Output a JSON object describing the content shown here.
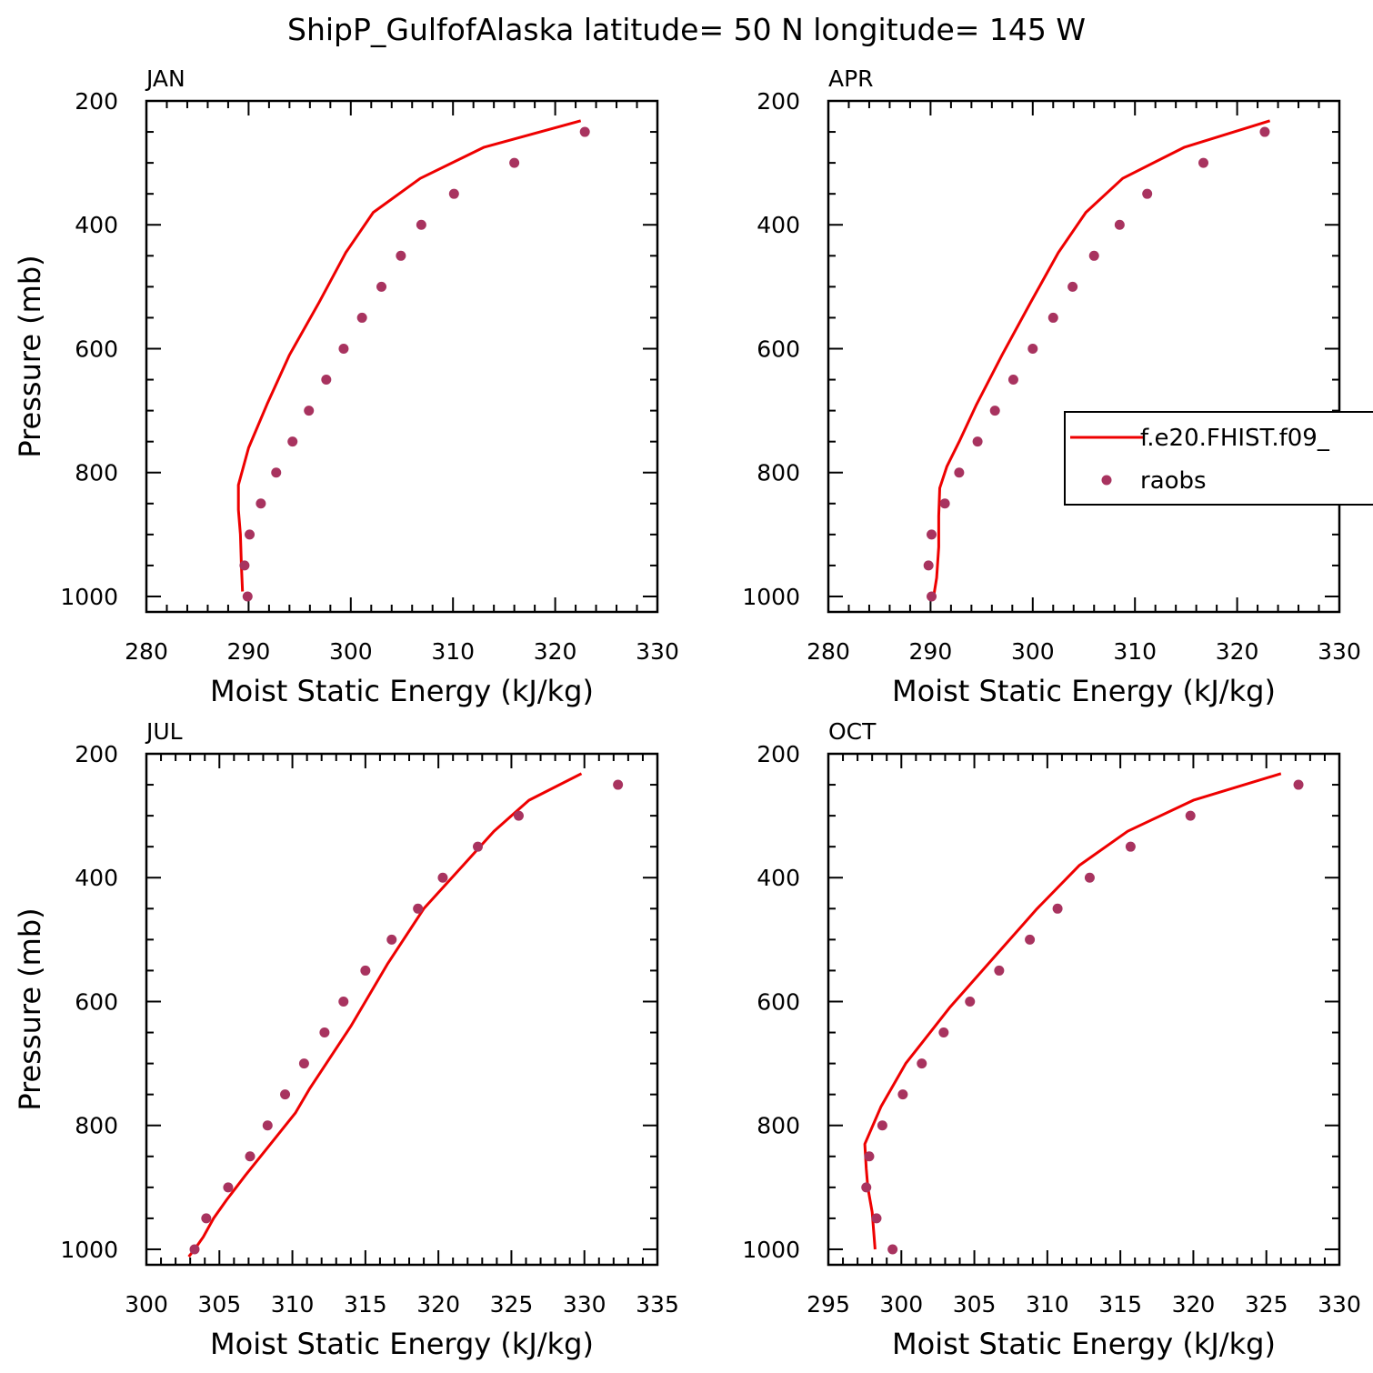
{
  "title": "ShipP_GulfofAlaska  latitude= 50 N longitude= 145 W",
  "colors": {
    "model": "#ee0000",
    "obs": "#a8335f",
    "axis": "#000000"
  },
  "legend": {
    "model_label": "f.e20.FHIST.f09_",
    "obs_label": "raobs",
    "panel": 1
  },
  "chart_data": [
    {
      "type": "line",
      "title": "JAN",
      "xlabel": "Moist Static Energy (kJ/kg)",
      "ylabel": "Pressure (mb)",
      "xlim": [
        280,
        330
      ],
      "ylim": [
        1025,
        200
      ],
      "xticks": [
        280,
        290,
        300,
        310,
        320,
        330
      ],
      "yticks": [
        200,
        400,
        600,
        800,
        1000
      ],
      "series": [
        {
          "name": "f.e20.FHIST.f09_",
          "style": "line",
          "x": [
            322.5,
            313.0,
            306.8,
            302.2,
            299.5,
            296.9,
            294.0,
            291.8,
            290.0,
            289.0,
            289.0,
            289.2,
            289.3,
            289.4
          ],
          "y": [
            232,
            275,
            325,
            380,
            445,
            525,
            610,
            690,
            760,
            820,
            860,
            900,
            950,
            992
          ]
        },
        {
          "name": "raobs",
          "style": "markers",
          "x": [
            322.9,
            316.0,
            310.1,
            306.9,
            304.9,
            303.0,
            301.1,
            299.3,
            297.6,
            295.9,
            294.3,
            292.7,
            291.2,
            290.1,
            289.6,
            289.9
          ],
          "y": [
            250,
            300,
            350,
            400,
            450,
            500,
            550,
            600,
            650,
            700,
            750,
            800,
            850,
            900,
            950,
            1000
          ]
        }
      ]
    },
    {
      "type": "line",
      "title": "APR",
      "xlabel": "Moist Static Energy (kJ/kg)",
      "ylabel": "",
      "xlim": [
        280,
        330
      ],
      "ylim": [
        1025,
        200
      ],
      "xticks": [
        280,
        290,
        300,
        310,
        320,
        330
      ],
      "yticks": [
        200,
        400,
        600,
        800,
        1000
      ],
      "series": [
        {
          "name": "f.e20.FHIST.f09_",
          "style": "line",
          "x": [
            323.2,
            314.8,
            308.8,
            305.2,
            302.5,
            299.8,
            297.0,
            294.5,
            292.8,
            291.6,
            290.9,
            290.8,
            290.8,
            290.6,
            290.3
          ],
          "y": [
            232,
            275,
            325,
            380,
            445,
            525,
            610,
            690,
            750,
            790,
            825,
            870,
            920,
            970,
            1000
          ]
        },
        {
          "name": "raobs",
          "style": "markers",
          "x": [
            322.7,
            316.7,
            311.2,
            308.5,
            306.0,
            303.9,
            302.0,
            300.0,
            298.1,
            296.3,
            294.6,
            292.8,
            291.4,
            290.1,
            289.8,
            290.1
          ],
          "y": [
            250,
            300,
            350,
            400,
            450,
            500,
            550,
            600,
            650,
            700,
            750,
            800,
            850,
            900,
            950,
            1000
          ]
        }
      ]
    },
    {
      "type": "line",
      "title": "JUL",
      "xlabel": "Moist Static Energy (kJ/kg)",
      "ylabel": "Pressure (mb)",
      "xlim": [
        300,
        335
      ],
      "ylim": [
        1025,
        200
      ],
      "xticks": [
        300,
        305,
        310,
        315,
        320,
        325,
        330,
        335
      ],
      "yticks": [
        200,
        400,
        600,
        800,
        1000
      ],
      "series": [
        {
          "name": "f.e20.FHIST.f09_",
          "style": "line",
          "x": [
            329.8,
            326.2,
            323.8,
            321.7,
            319.0,
            316.5,
            314.0,
            311.2,
            310.2,
            308.5,
            306.8,
            305.5,
            304.6,
            303.9,
            303.3,
            302.9
          ],
          "y": [
            232,
            275,
            325,
            380,
            450,
            540,
            640,
            740,
            780,
            830,
            880,
            920,
            950,
            980,
            1000,
            1012
          ]
        },
        {
          "name": "raobs",
          "style": "markers",
          "x": [
            332.3,
            325.5,
            322.7,
            320.3,
            318.6,
            316.8,
            315.0,
            313.5,
            312.2,
            310.8,
            309.5,
            308.3,
            307.1,
            305.6,
            304.1,
            303.3
          ],
          "y": [
            250,
            300,
            350,
            400,
            450,
            500,
            550,
            600,
            650,
            700,
            750,
            800,
            850,
            900,
            950,
            1000
          ]
        }
      ]
    },
    {
      "type": "line",
      "title": "OCT",
      "xlabel": "Moist Static Energy (kJ/kg)",
      "ylabel": "",
      "xlim": [
        295,
        330
      ],
      "ylim": [
        1025,
        200
      ],
      "xticks": [
        295,
        300,
        305,
        310,
        315,
        320,
        325,
        330
      ],
      "yticks": [
        200,
        400,
        600,
        800,
        1000
      ],
      "series": [
        {
          "name": "f.e20.FHIST.f09_",
          "style": "line",
          "x": [
            326.0,
            320.0,
            315.5,
            312.2,
            309.3,
            306.3,
            303.3,
            300.3,
            298.6,
            297.5,
            297.6,
            297.7,
            298.0,
            298.1,
            298.2
          ],
          "y": [
            232,
            275,
            325,
            380,
            450,
            530,
            610,
            700,
            770,
            830,
            870,
            900,
            940,
            970,
            1000
          ]
        },
        {
          "name": "raobs",
          "style": "markers",
          "x": [
            327.2,
            319.8,
            315.7,
            312.9,
            310.7,
            308.8,
            306.7,
            304.7,
            302.9,
            301.4,
            300.1,
            298.7,
            297.8,
            297.6,
            298.3,
            299.4
          ],
          "y": [
            250,
            300,
            350,
            400,
            450,
            500,
            550,
            600,
            650,
            700,
            750,
            800,
            850,
            900,
            950,
            1000
          ]
        }
      ]
    }
  ]
}
